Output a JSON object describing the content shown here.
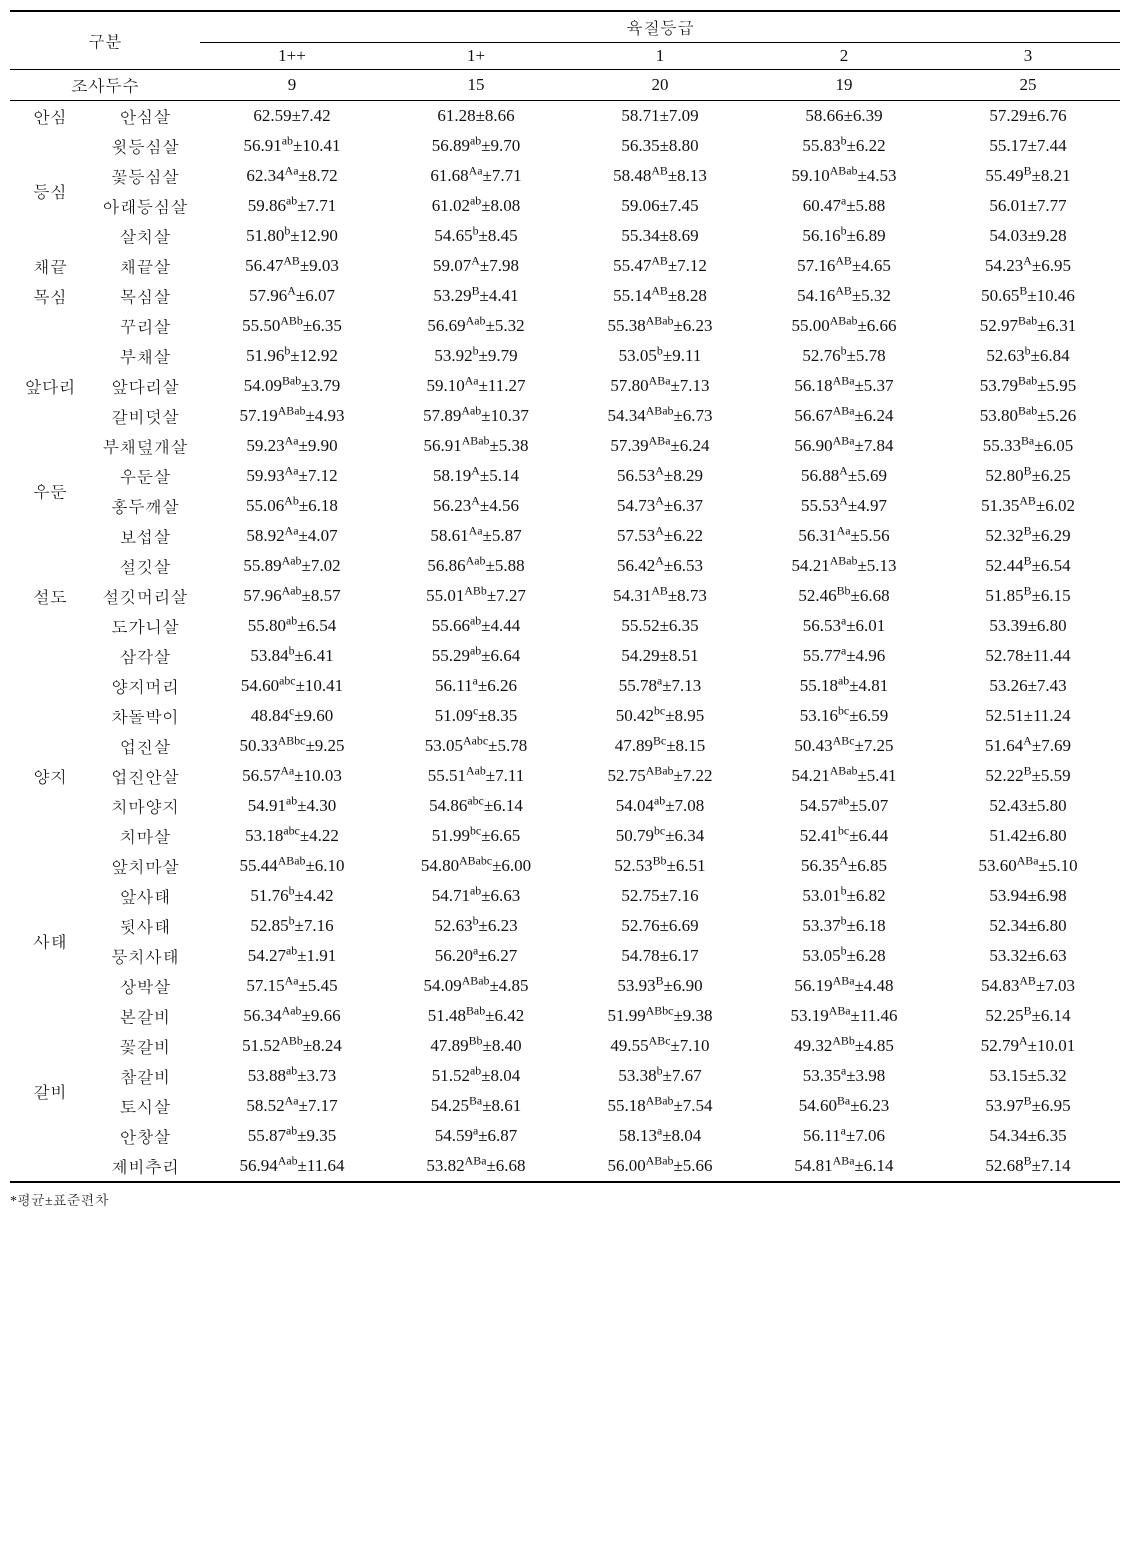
{
  "headers": {
    "group_label": "구분",
    "grade_header": "육질등급",
    "grades": [
      "1++",
      "1+",
      "1",
      "2",
      "3"
    ],
    "count_label": "조사두수",
    "counts": [
      "9",
      "15",
      "20",
      "19",
      "25"
    ]
  },
  "primals": [
    {
      "name": "안심",
      "rows": [
        "안심살"
      ]
    },
    {
      "name": "등심",
      "rows": [
        "윗등심살",
        "꽃등심살",
        "아래등심살",
        "살치살"
      ]
    },
    {
      "name": "채끝",
      "rows": [
        "채끝살"
      ]
    },
    {
      "name": "목심",
      "rows": [
        "목심살"
      ]
    },
    {
      "name": "앞다리",
      "rows": [
        "꾸리살",
        "부채살",
        "앞다리살",
        "갈비덧살",
        "부채덮개살"
      ]
    },
    {
      "name": "우둔",
      "rows": [
        "우둔살",
        "홍두깨살"
      ]
    },
    {
      "name": "설도",
      "rows": [
        "보섭살",
        "설깃살",
        "설깃머리살",
        "도가니살",
        "삼각살"
      ]
    },
    {
      "name": "양지",
      "rows": [
        "양지머리",
        "차돌박이",
        "업진살",
        "업진안살",
        "치마양지",
        "치마살",
        "앞치마살"
      ]
    },
    {
      "name": "사태",
      "rows": [
        "앞사태",
        "뒷사태",
        "뭉치사태",
        "상박살"
      ]
    },
    {
      "name": "갈비",
      "rows": [
        "본갈비",
        "꽃갈비",
        "참갈비",
        "토시살",
        "안창살",
        "제비추리"
      ]
    }
  ],
  "rows": [
    {
      "sub": "안심살",
      "v": [
        {
          "m": "62.59",
          "sd": "7.42",
          "s": ""
        },
        {
          "m": "61.28",
          "sd": "8.66",
          "s": ""
        },
        {
          "m": "58.71",
          "sd": "7.09",
          "s": ""
        },
        {
          "m": "58.66",
          "sd": "6.39",
          "s": ""
        },
        {
          "m": "57.29",
          "sd": "6.76",
          "s": ""
        }
      ]
    },
    {
      "sub": "윗등심살",
      "v": [
        {
          "m": "56.91",
          "sd": "10.41",
          "s": "ab"
        },
        {
          "m": "56.89",
          "sd": "9.70",
          "s": "ab"
        },
        {
          "m": "56.35",
          "sd": "8.80",
          "s": ""
        },
        {
          "m": "55.83",
          "sd": "6.22",
          "s": "b"
        },
        {
          "m": "55.17",
          "sd": "7.44",
          "s": ""
        }
      ]
    },
    {
      "sub": "꽃등심살",
      "v": [
        {
          "m": "62.34",
          "sd": "8.72",
          "s": "Aa"
        },
        {
          "m": "61.68",
          "sd": "7.71",
          "s": "Aa"
        },
        {
          "m": "58.48",
          "sd": "8.13",
          "s": "AB"
        },
        {
          "m": "59.10",
          "sd": "4.53",
          "s": "ABab"
        },
        {
          "m": "55.49",
          "sd": "8.21",
          "s": "B"
        }
      ]
    },
    {
      "sub": "아래등심살",
      "v": [
        {
          "m": "59.86",
          "sd": "7.71",
          "s": "ab"
        },
        {
          "m": "61.02",
          "sd": "8.08",
          "s": "ab"
        },
        {
          "m": "59.06",
          "sd": "7.45",
          "s": ""
        },
        {
          "m": "60.47",
          "sd": "5.88",
          "s": "a"
        },
        {
          "m": "56.01",
          "sd": "7.77",
          "s": ""
        }
      ]
    },
    {
      "sub": "살치살",
      "v": [
        {
          "m": "51.80",
          "sd": "12.90",
          "s": "b"
        },
        {
          "m": "54.65",
          "sd": "8.45",
          "s": "b"
        },
        {
          "m": "55.34",
          "sd": "8.69",
          "s": ""
        },
        {
          "m": "56.16",
          "sd": "6.89",
          "s": "b"
        },
        {
          "m": "54.03",
          "sd": "9.28",
          "s": ""
        }
      ]
    },
    {
      "sub": "채끝살",
      "v": [
        {
          "m": "56.47",
          "sd": "9.03",
          "s": "AB"
        },
        {
          "m": "59.07",
          "sd": "7.98",
          "s": "A"
        },
        {
          "m": "55.47",
          "sd": "7.12",
          "s": "AB"
        },
        {
          "m": "57.16",
          "sd": "4.65",
          "s": "AB"
        },
        {
          "m": "54.23",
          "sd": "6.95",
          "s": "A"
        }
      ]
    },
    {
      "sub": "목심살",
      "v": [
        {
          "m": "57.96",
          "sd": "6.07",
          "s": "A"
        },
        {
          "m": "53.29",
          "sd": "4.41",
          "s": "B"
        },
        {
          "m": "55.14",
          "sd": "8.28",
          "s": "AB"
        },
        {
          "m": "54.16",
          "sd": "5.32",
          "s": "AB"
        },
        {
          "m": "50.65",
          "sd": "10.46",
          "s": "B"
        }
      ]
    },
    {
      "sub": "꾸리살",
      "v": [
        {
          "m": "55.50",
          "sd": "6.35",
          "s": "ABb"
        },
        {
          "m": "56.69",
          "sd": "5.32",
          "s": "Aab"
        },
        {
          "m": "55.38",
          "sd": "6.23",
          "s": "ABab"
        },
        {
          "m": "55.00",
          "sd": "6.66",
          "s": "ABab"
        },
        {
          "m": "52.97",
          "sd": "6.31",
          "s": "Bab"
        }
      ]
    },
    {
      "sub": "부채살",
      "v": [
        {
          "m": "51.96",
          "sd": "12.92",
          "s": "b"
        },
        {
          "m": "53.92",
          "sd": "9.79",
          "s": "b"
        },
        {
          "m": "53.05",
          "sd": "9.11",
          "s": "b"
        },
        {
          "m": "52.76",
          "sd": "5.78",
          "s": "b"
        },
        {
          "m": "52.63",
          "sd": "6.84",
          "s": "b"
        }
      ]
    },
    {
      "sub": "앞다리살",
      "v": [
        {
          "m": "54.09",
          "sd": "3.79",
          "s": "Bab"
        },
        {
          "m": "59.10",
          "sd": "11.27",
          "s": "Aa"
        },
        {
          "m": "57.80",
          "sd": "7.13",
          "s": "ABa"
        },
        {
          "m": "56.18",
          "sd": "5.37",
          "s": "ABa"
        },
        {
          "m": "53.79",
          "sd": "5.95",
          "s": "Bab"
        }
      ]
    },
    {
      "sub": "갈비덧살",
      "v": [
        {
          "m": "57.19",
          "sd": "4.93",
          "s": "ABab"
        },
        {
          "m": "57.89",
          "sd": "10.37",
          "s": "Aab"
        },
        {
          "m": "54.34",
          "sd": "6.73",
          "s": "ABab"
        },
        {
          "m": "56.67",
          "sd": "6.24",
          "s": "ABa"
        },
        {
          "m": "53.80",
          "sd": "5.26",
          "s": "Bab"
        }
      ]
    },
    {
      "sub": "부채덮개살",
      "v": [
        {
          "m": "59.23",
          "sd": "9.90",
          "s": "Aa"
        },
        {
          "m": "56.91",
          "sd": "5.38",
          "s": "ABab"
        },
        {
          "m": "57.39",
          "sd": "6.24",
          "s": "ABa"
        },
        {
          "m": "56.90",
          "sd": "7.84",
          "s": "ABa"
        },
        {
          "m": "55.33",
          "sd": "6.05",
          "s": "Ba"
        }
      ]
    },
    {
      "sub": "우둔살",
      "v": [
        {
          "m": "59.93",
          "sd": "7.12",
          "s": "Aa"
        },
        {
          "m": "58.19",
          "sd": "5.14",
          "s": "A"
        },
        {
          "m": "56.53",
          "sd": "8.29",
          "s": "A"
        },
        {
          "m": "56.88",
          "sd": "5.69",
          "s": "A"
        },
        {
          "m": "52.80",
          "sd": "6.25",
          "s": "B"
        }
      ]
    },
    {
      "sub": "홍두깨살",
      "v": [
        {
          "m": "55.06",
          "sd": "6.18",
          "s": "Ab"
        },
        {
          "m": "56.23",
          "sd": "4.56",
          "s": "A"
        },
        {
          "m": "54.73",
          "sd": "6.37",
          "s": "A"
        },
        {
          "m": "55.53",
          "sd": "4.97",
          "s": "A"
        },
        {
          "m": "51.35",
          "sd": "6.02",
          "s": "AB"
        }
      ]
    },
    {
      "sub": "보섭살",
      "v": [
        {
          "m": "58.92",
          "sd": "4.07",
          "s": "Aa"
        },
        {
          "m": "58.61",
          "sd": "5.87",
          "s": "Aa"
        },
        {
          "m": "57.53",
          "sd": "6.22",
          "s": "A"
        },
        {
          "m": "56.31",
          "sd": "5.56",
          "s": "Aa"
        },
        {
          "m": "52.32",
          "sd": "6.29",
          "s": "B"
        }
      ]
    },
    {
      "sub": "설깃살",
      "v": [
        {
          "m": "55.89",
          "sd": "7.02",
          "s": "Aab"
        },
        {
          "m": "56.86",
          "sd": "5.88",
          "s": "Aab"
        },
        {
          "m": "56.42",
          "sd": "6.53",
          "s": "A"
        },
        {
          "m": "54.21",
          "sd": "5.13",
          "s": "ABab"
        },
        {
          "m": "52.44",
          "sd": "6.54",
          "s": "B"
        }
      ]
    },
    {
      "sub": "설깃머리살",
      "v": [
        {
          "m": "57.96",
          "sd": "8.57",
          "s": "Aab"
        },
        {
          "m": "55.01",
          "sd": "7.27",
          "s": "ABb"
        },
        {
          "m": "54.31",
          "sd": "8.73",
          "s": "AB"
        },
        {
          "m": "52.46",
          "sd": "6.68",
          "s": "Bb"
        },
        {
          "m": "51.85",
          "sd": "6.15",
          "s": "B"
        }
      ]
    },
    {
      "sub": "도가니살",
      "v": [
        {
          "m": "55.80",
          "sd": "6.54",
          "s": "ab"
        },
        {
          "m": "55.66",
          "sd": "4.44",
          "s": "ab"
        },
        {
          "m": "55.52",
          "sd": "6.35",
          "s": ""
        },
        {
          "m": "56.53",
          "sd": "6.01",
          "s": "a"
        },
        {
          "m": "53.39",
          "sd": "6.80",
          "s": ""
        }
      ]
    },
    {
      "sub": "삼각살",
      "v": [
        {
          "m": "53.84",
          "sd": "6.41",
          "s": "b"
        },
        {
          "m": "55.29",
          "sd": "6.64",
          "s": "ab"
        },
        {
          "m": "54.29",
          "sd": "8.51",
          "s": ""
        },
        {
          "m": "55.77",
          "sd": "4.96",
          "s": "a"
        },
        {
          "m": "52.78",
          "sd": "11.44",
          "s": ""
        }
      ]
    },
    {
      "sub": "양지머리",
      "v": [
        {
          "m": "54.60",
          "sd": "10.41",
          "s": "abc"
        },
        {
          "m": "56.11",
          "sd": "6.26",
          "s": "a"
        },
        {
          "m": "55.78",
          "sd": "7.13",
          "s": "a"
        },
        {
          "m": "55.18",
          "sd": "4.81",
          "s": "ab"
        },
        {
          "m": "53.26",
          "sd": "7.43",
          "s": ""
        }
      ]
    },
    {
      "sub": "차돌박이",
      "v": [
        {
          "m": "48.84",
          "sd": "9.60",
          "s": "c"
        },
        {
          "m": "51.09",
          "sd": "8.35",
          "s": "c"
        },
        {
          "m": "50.42",
          "sd": "8.95",
          "s": "bc"
        },
        {
          "m": "53.16",
          "sd": "6.59",
          "s": "bc"
        },
        {
          "m": "52.51",
          "sd": "11.24",
          "s": ""
        }
      ]
    },
    {
      "sub": "업진살",
      "v": [
        {
          "m": "50.33",
          "sd": "9.25",
          "s": "ABbc"
        },
        {
          "m": "53.05",
          "sd": "5.78",
          "s": "Aabc"
        },
        {
          "m": "47.89",
          "sd": "8.15",
          "s": "Bc"
        },
        {
          "m": "50.43",
          "sd": "7.25",
          "s": "ABc"
        },
        {
          "m": "51.64",
          "sd": "7.69",
          "s": "A"
        }
      ]
    },
    {
      "sub": "업진안살",
      "v": [
        {
          "m": "56.57",
          "sd": "10.03",
          "s": "Aa"
        },
        {
          "m": "55.51",
          "sd": "7.11",
          "s": "Aab"
        },
        {
          "m": "52.75",
          "sd": "7.22",
          "s": "ABab"
        },
        {
          "m": "54.21",
          "sd": "5.41",
          "s": "ABab"
        },
        {
          "m": "52.22",
          "sd": "5.59",
          "s": "B"
        }
      ]
    },
    {
      "sub": "치마양지",
      "v": [
        {
          "m": "54.91",
          "sd": "4.30",
          "s": "ab"
        },
        {
          "m": "54.86",
          "sd": "6.14",
          "s": "abc"
        },
        {
          "m": "54.04",
          "sd": "7.08",
          "s": "ab"
        },
        {
          "m": "54.57",
          "sd": "5.07",
          "s": "ab"
        },
        {
          "m": "52.43",
          "sd": "5.80",
          "s": ""
        }
      ]
    },
    {
      "sub": "치마살",
      "v": [
        {
          "m": "53.18",
          "sd": "4.22",
          "s": "abc"
        },
        {
          "m": "51.99",
          "sd": "6.65",
          "s": "bc"
        },
        {
          "m": "50.79",
          "sd": "6.34",
          "s": "bc"
        },
        {
          "m": "52.41",
          "sd": "6.44",
          "s": "bc"
        },
        {
          "m": "51.42",
          "sd": "6.80",
          "s": ""
        }
      ]
    },
    {
      "sub": "앞치마살",
      "v": [
        {
          "m": "55.44",
          "sd": "6.10",
          "s": "ABab"
        },
        {
          "m": "54.80",
          "sd": "6.00",
          "s": "ABabc"
        },
        {
          "m": "52.53",
          "sd": "6.51",
          "s": "Bb"
        },
        {
          "m": "56.35",
          "sd": "6.85",
          "s": "A"
        },
        {
          "m": "53.60",
          "sd": "5.10",
          "s": "ABa"
        }
      ]
    },
    {
      "sub": "앞사태",
      "v": [
        {
          "m": "51.76",
          "sd": "4.42",
          "s": "b"
        },
        {
          "m": "54.71",
          "sd": "6.63",
          "s": "ab"
        },
        {
          "m": "52.75",
          "sd": "7.16",
          "s": ""
        },
        {
          "m": "53.01",
          "sd": "6.82",
          "s": "b"
        },
        {
          "m": "53.94",
          "sd": "6.98",
          "s": ""
        }
      ]
    },
    {
      "sub": "뒷사태",
      "v": [
        {
          "m": "52.85",
          "sd": "7.16",
          "s": "b"
        },
        {
          "m": "52.63",
          "sd": "6.23",
          "s": "b"
        },
        {
          "m": "52.76",
          "sd": "6.69",
          "s": ""
        },
        {
          "m": "53.37",
          "sd": "6.18",
          "s": "b"
        },
        {
          "m": "52.34",
          "sd": "6.80",
          "s": ""
        }
      ]
    },
    {
      "sub": "뭉치사태",
      "v": [
        {
          "m": "54.27",
          "sd": "1.91",
          "s": "ab"
        },
        {
          "m": "56.20",
          "sd": "6.27",
          "s": "a"
        },
        {
          "m": "54.78",
          "sd": "6.17",
          "s": ""
        },
        {
          "m": "53.05",
          "sd": "6.28",
          "s": "b"
        },
        {
          "m": "53.32",
          "sd": "6.63",
          "s": ""
        }
      ]
    },
    {
      "sub": "상박살",
      "v": [
        {
          "m": "57.15",
          "sd": "5.45",
          "s": "Aa"
        },
        {
          "m": "54.09",
          "sd": "4.85",
          "s": "ABab"
        },
        {
          "m": "53.93",
          "sd": "6.90",
          "s": "B"
        },
        {
          "m": "56.19",
          "sd": "4.48",
          "s": "ABa"
        },
        {
          "m": "54.83",
          "sd": "7.03",
          "s": "AB"
        }
      ]
    },
    {
      "sub": "본갈비",
      "v": [
        {
          "m": "56.34",
          "sd": "9.66",
          "s": "Aab"
        },
        {
          "m": "51.48",
          "sd": "6.42",
          "s": "Bab"
        },
        {
          "m": "51.99",
          "sd": "9.38",
          "s": "ABbc"
        },
        {
          "m": "53.19",
          "sd": "11.46",
          "s": "ABa"
        },
        {
          "m": "52.25",
          "sd": "6.14",
          "s": "B"
        }
      ]
    },
    {
      "sub": "꽃갈비",
      "v": [
        {
          "m": "51.52",
          "sd": "8.24",
          "s": "ABb"
        },
        {
          "m": "47.89",
          "sd": "8.40",
          "s": "Bb"
        },
        {
          "m": "49.55",
          "sd": "7.10",
          "s": "ABc"
        },
        {
          "m": "49.32",
          "sd": "4.85",
          "s": "ABb"
        },
        {
          "m": "52.79",
          "sd": "10.01",
          "s": "A"
        }
      ]
    },
    {
      "sub": "참갈비",
      "v": [
        {
          "m": "53.88",
          "sd": "3.73",
          "s": "ab"
        },
        {
          "m": "51.52",
          "sd": "8.04",
          "s": "ab"
        },
        {
          "m": "53.38",
          "sd": "7.67",
          "s": "b"
        },
        {
          "m": "53.35",
          "sd": "3.98",
          "s": "a"
        },
        {
          "m": "53.15",
          "sd": "5.32",
          "s": ""
        }
      ]
    },
    {
      "sub": "토시살",
      "v": [
        {
          "m": "58.52",
          "sd": "7.17",
          "s": "Aa"
        },
        {
          "m": "54.25",
          "sd": "8.61",
          "s": "Ba"
        },
        {
          "m": "55.18",
          "sd": "7.54",
          "s": "ABab"
        },
        {
          "m": "54.60",
          "sd": "6.23",
          "s": "Ba"
        },
        {
          "m": "53.97",
          "sd": "6.95",
          "s": "B"
        }
      ]
    },
    {
      "sub": "안창살",
      "v": [
        {
          "m": "55.87",
          "sd": "9.35",
          "s": "ab"
        },
        {
          "m": "54.59",
          "sd": "6.87",
          "s": "a"
        },
        {
          "m": "58.13",
          "sd": "8.04",
          "s": "a"
        },
        {
          "m": "56.11",
          "sd": "7.06",
          "s": "a"
        },
        {
          "m": "54.34",
          "sd": "6.35",
          "s": ""
        }
      ]
    },
    {
      "sub": "제비추리",
      "v": [
        {
          "m": "56.94",
          "sd": "11.64",
          "s": "Aab"
        },
        {
          "m": "53.82",
          "sd": "6.68",
          "s": "ABa"
        },
        {
          "m": "56.00",
          "sd": "5.66",
          "s": "ABab"
        },
        {
          "m": "54.81",
          "sd": "6.14",
          "s": "ABa"
        },
        {
          "m": "52.68",
          "sd": "7.14",
          "s": "B"
        }
      ]
    }
  ],
  "footnote": "*평균±표준편차"
}
